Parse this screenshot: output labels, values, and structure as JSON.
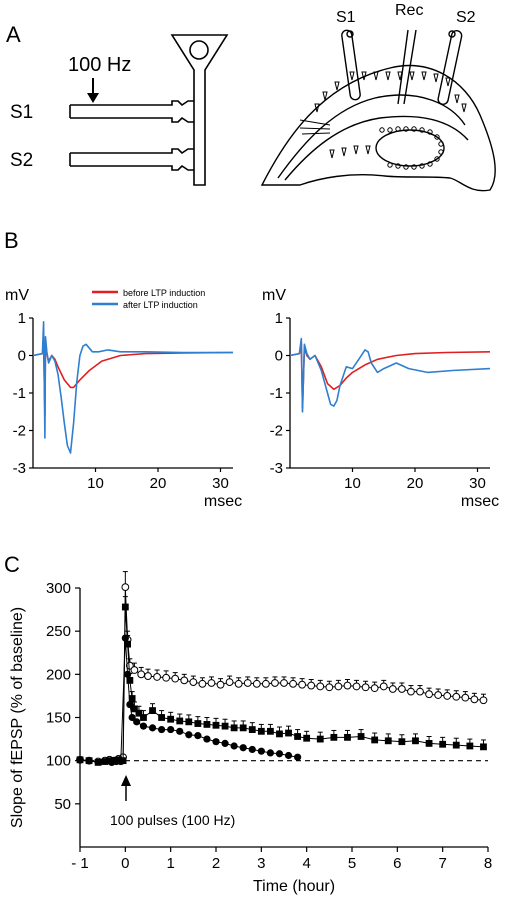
{
  "panels": {
    "a": {
      "letter": "A",
      "stim_label": "100 Hz",
      "s1": "S1",
      "s2": "S2",
      "rec": "Rec",
      "slice_s1": "S1",
      "slice_s2": "S2"
    },
    "b": {
      "letter": "B",
      "legend": [
        {
          "label": "before LTP induction",
          "color": "#e02020"
        },
        {
          "label": "after LTP induction",
          "color": "#2f7fd0"
        }
      ]
    },
    "c": {
      "letter": "C",
      "annotation": "100 pulses (100 Hz)"
    }
  },
  "chart_data": [
    {
      "type": "line",
      "panel": "B-left",
      "ylabel": "mV",
      "xlabel": "msec",
      "xlim": [
        0,
        32
      ],
      "ylim": [
        -3,
        1
      ],
      "xticks": [
        10,
        20,
        30
      ],
      "yticks": [
        1,
        0,
        -1,
        -2,
        -3
      ],
      "series": [
        {
          "name": "before LTP induction",
          "color": "#e02020",
          "x": [
            0,
            1.5,
            1.7,
            1.9,
            2.0,
            2.2,
            2.5,
            3.0,
            3.5,
            4.0,
            5.0,
            6.0,
            6.5,
            7.5,
            9.0,
            11.0,
            14.0,
            18.0,
            24.0,
            32.0
          ],
          "y": [
            0,
            0.05,
            0.3,
            -1.6,
            0.4,
            0.05,
            -0.15,
            0.0,
            -0.1,
            -0.3,
            -0.65,
            -0.85,
            -0.85,
            -0.65,
            -0.4,
            -0.15,
            0.0,
            0.05,
            0.07,
            0.08
          ]
        },
        {
          "name": "after LTP induction",
          "color": "#2f7fd0",
          "x": [
            0,
            1.5,
            1.7,
            1.9,
            2.0,
            2.2,
            2.5,
            3.0,
            3.5,
            4.0,
            4.5,
            5.0,
            5.5,
            6.0,
            6.5,
            7.0,
            7.5,
            8.0,
            8.5,
            9.5,
            10.5,
            12.0,
            14.0,
            18.0,
            24.0,
            32.0
          ],
          "y": [
            0,
            0.05,
            0.9,
            -2.2,
            0.5,
            0.1,
            -0.2,
            0.0,
            -0.15,
            -0.5,
            -1.1,
            -1.8,
            -2.4,
            -2.6,
            -1.8,
            -0.7,
            0.0,
            0.25,
            0.3,
            0.1,
            0.1,
            0.15,
            0.1,
            0.1,
            0.08,
            0.08
          ]
        }
      ]
    },
    {
      "type": "line",
      "panel": "B-right",
      "ylabel": "mV",
      "xlabel": "msec",
      "xlim": [
        0,
        32
      ],
      "ylim": [
        -3,
        1
      ],
      "xticks": [
        10,
        20,
        30
      ],
      "yticks": [
        1,
        0,
        -1,
        -2,
        -3
      ],
      "series": [
        {
          "name": "before LTP induction",
          "color": "#e02020",
          "x": [
            0,
            1.5,
            1.8,
            2.0,
            2.3,
            2.7,
            3.2,
            4.0,
            5.0,
            6.0,
            7.0,
            8.0,
            9.0,
            10.0,
            12.0,
            14.0,
            17.0,
            20.0,
            25.0,
            32.0
          ],
          "y": [
            0,
            0.05,
            0.35,
            -1.4,
            0.2,
            0.0,
            -0.1,
            0.0,
            -0.3,
            -0.75,
            -0.9,
            -0.8,
            -0.6,
            -0.45,
            -0.25,
            -0.1,
            0.0,
            0.05,
            0.08,
            0.1
          ]
        },
        {
          "name": "after LTP induction",
          "color": "#2f7fd0",
          "x": [
            0,
            1.5,
            1.8,
            2.0,
            2.3,
            2.7,
            3.2,
            4.0,
            5.0,
            6.0,
            6.5,
            7.0,
            7.5,
            8.0,
            9.0,
            10.0,
            11.0,
            12.0,
            12.5,
            13.0,
            14.0,
            15.0,
            17.0,
            19.0,
            22.0,
            26.0,
            32.0
          ],
          "y": [
            0,
            0.05,
            0.45,
            -1.5,
            0.3,
            0.05,
            -0.1,
            0.0,
            -0.4,
            -1.0,
            -1.3,
            -1.35,
            -1.2,
            -0.8,
            -0.3,
            -0.35,
            -0.1,
            0.15,
            0.1,
            -0.2,
            -0.45,
            -0.35,
            -0.2,
            -0.35,
            -0.45,
            -0.4,
            -0.35
          ]
        }
      ]
    },
    {
      "type": "scatter",
      "panel": "C",
      "xlabel": "Time (hour)",
      "ylabel": "Slope of fEPSP (% of baseline)",
      "xlim": [
        -1,
        8
      ],
      "ylim": [
        0,
        300
      ],
      "xticks": [
        -1,
        0,
        1,
        2,
        3,
        4,
        5,
        6,
        7,
        8
      ],
      "xtick_labels": [
        "- 1",
        "0",
        "1",
        "2",
        "3",
        "4",
        "5",
        "6",
        "7",
        "8"
      ],
      "yticks": [
        50,
        100,
        150,
        200,
        250,
        300
      ],
      "baseline": 100,
      "series": [
        {
          "marker": "open-circle",
          "x": [
            -1,
            -0.8,
            -0.6,
            -0.45,
            -0.35,
            -0.25,
            -0.15,
            -0.05,
            0.0,
            0.05,
            0.1,
            0.2,
            0.35,
            0.5,
            0.7,
            0.9,
            1.1,
            1.3,
            1.5,
            1.7,
            1.9,
            2.1,
            2.3,
            2.5,
            2.7,
            2.9,
            3.1,
            3.3,
            3.5,
            3.7,
            3.9,
            4.1,
            4.3,
            4.5,
            4.7,
            4.9,
            5.1,
            5.3,
            5.5,
            5.7,
            5.9,
            6.1,
            6.3,
            6.5,
            6.7,
            6.9,
            7.1,
            7.3,
            7.5,
            7.7,
            7.9
          ],
          "y": [
            101,
            100,
            99,
            100,
            101,
            100,
            102,
            104,
            301,
            240,
            210,
            205,
            200,
            198,
            197,
            196,
            195,
            193,
            191,
            189,
            190,
            188,
            191,
            189,
            190,
            189,
            189,
            190,
            190,
            189,
            188,
            187,
            186,
            185,
            186,
            187,
            186,
            185,
            184,
            186,
            183,
            183,
            180,
            180,
            177,
            176,
            175,
            174,
            173,
            171,
            170
          ],
          "err": [
            3,
            3,
            3,
            3,
            3,
            3,
            3,
            3,
            18,
            10,
            8,
            8,
            8,
            8,
            8,
            8,
            7,
            7,
            7,
            7,
            7,
            7,
            7,
            7,
            7,
            7,
            7,
            7,
            7,
            7,
            7,
            7,
            7,
            7,
            7,
            7,
            7,
            7,
            7,
            7,
            7,
            7,
            7,
            7,
            7,
            7,
            7,
            7,
            7,
            7,
            7
          ]
        },
        {
          "marker": "filled-square",
          "x": [
            -1,
            -0.8,
            -0.6,
            -0.45,
            -0.35,
            -0.25,
            -0.15,
            -0.05,
            0.0,
            0.05,
            0.1,
            0.15,
            0.2,
            0.3,
            0.4,
            0.6,
            0.8,
            1.0,
            1.2,
            1.4,
            1.6,
            1.8,
            2.0,
            2.2,
            2.4,
            2.6,
            2.8,
            3.0,
            3.2,
            3.4,
            3.6,
            3.8,
            4.0,
            4.3,
            4.6,
            4.9,
            5.2,
            5.5,
            5.8,
            6.1,
            6.4,
            6.7,
            7.0,
            7.3,
            7.6,
            7.9
          ],
          "y": [
            101,
            100,
            98,
            99,
            100,
            100,
            101,
            100,
            278,
            235,
            193,
            172,
            160,
            155,
            150,
            158,
            150,
            148,
            146,
            145,
            143,
            142,
            141,
            140,
            138,
            138,
            136,
            134,
            134,
            131,
            132,
            128,
            126,
            125,
            127,
            127,
            128,
            124,
            123,
            122,
            123,
            120,
            119,
            118,
            117,
            116
          ],
          "err": [
            3,
            3,
            3,
            3,
            3,
            3,
            3,
            3,
            12,
            10,
            8,
            8,
            8,
            8,
            8,
            8,
            8,
            8,
            8,
            8,
            8,
            8,
            8,
            8,
            8,
            8,
            8,
            8,
            8,
            8,
            8,
            8,
            8,
            8,
            8,
            8,
            8,
            8,
            8,
            8,
            8,
            8,
            8,
            8,
            8,
            8
          ]
        },
        {
          "marker": "filled-circle",
          "x": [
            -0.3,
            -0.2,
            -0.1,
            0.0,
            0.05,
            0.1,
            0.15,
            0.25,
            0.4,
            0.6,
            0.8,
            1.0,
            1.2,
            1.4,
            1.6,
            1.8,
            2.0,
            2.2,
            2.4,
            2.6,
            2.8,
            3.0,
            3.2,
            3.4,
            3.6,
            3.8
          ],
          "y": [
            98,
            99,
            99,
            242,
            200,
            165,
            150,
            145,
            140,
            138,
            136,
            136,
            134,
            130,
            129,
            125,
            122,
            120,
            117,
            115,
            113,
            111,
            109,
            108,
            106,
            104
          ],
          "err": [
            0,
            0,
            0,
            0,
            0,
            0,
            0,
            0,
            0,
            0,
            0,
            0,
            0,
            0,
            0,
            0,
            0,
            0,
            0,
            0,
            0,
            0,
            0,
            0,
            0,
            0
          ]
        }
      ]
    }
  ]
}
